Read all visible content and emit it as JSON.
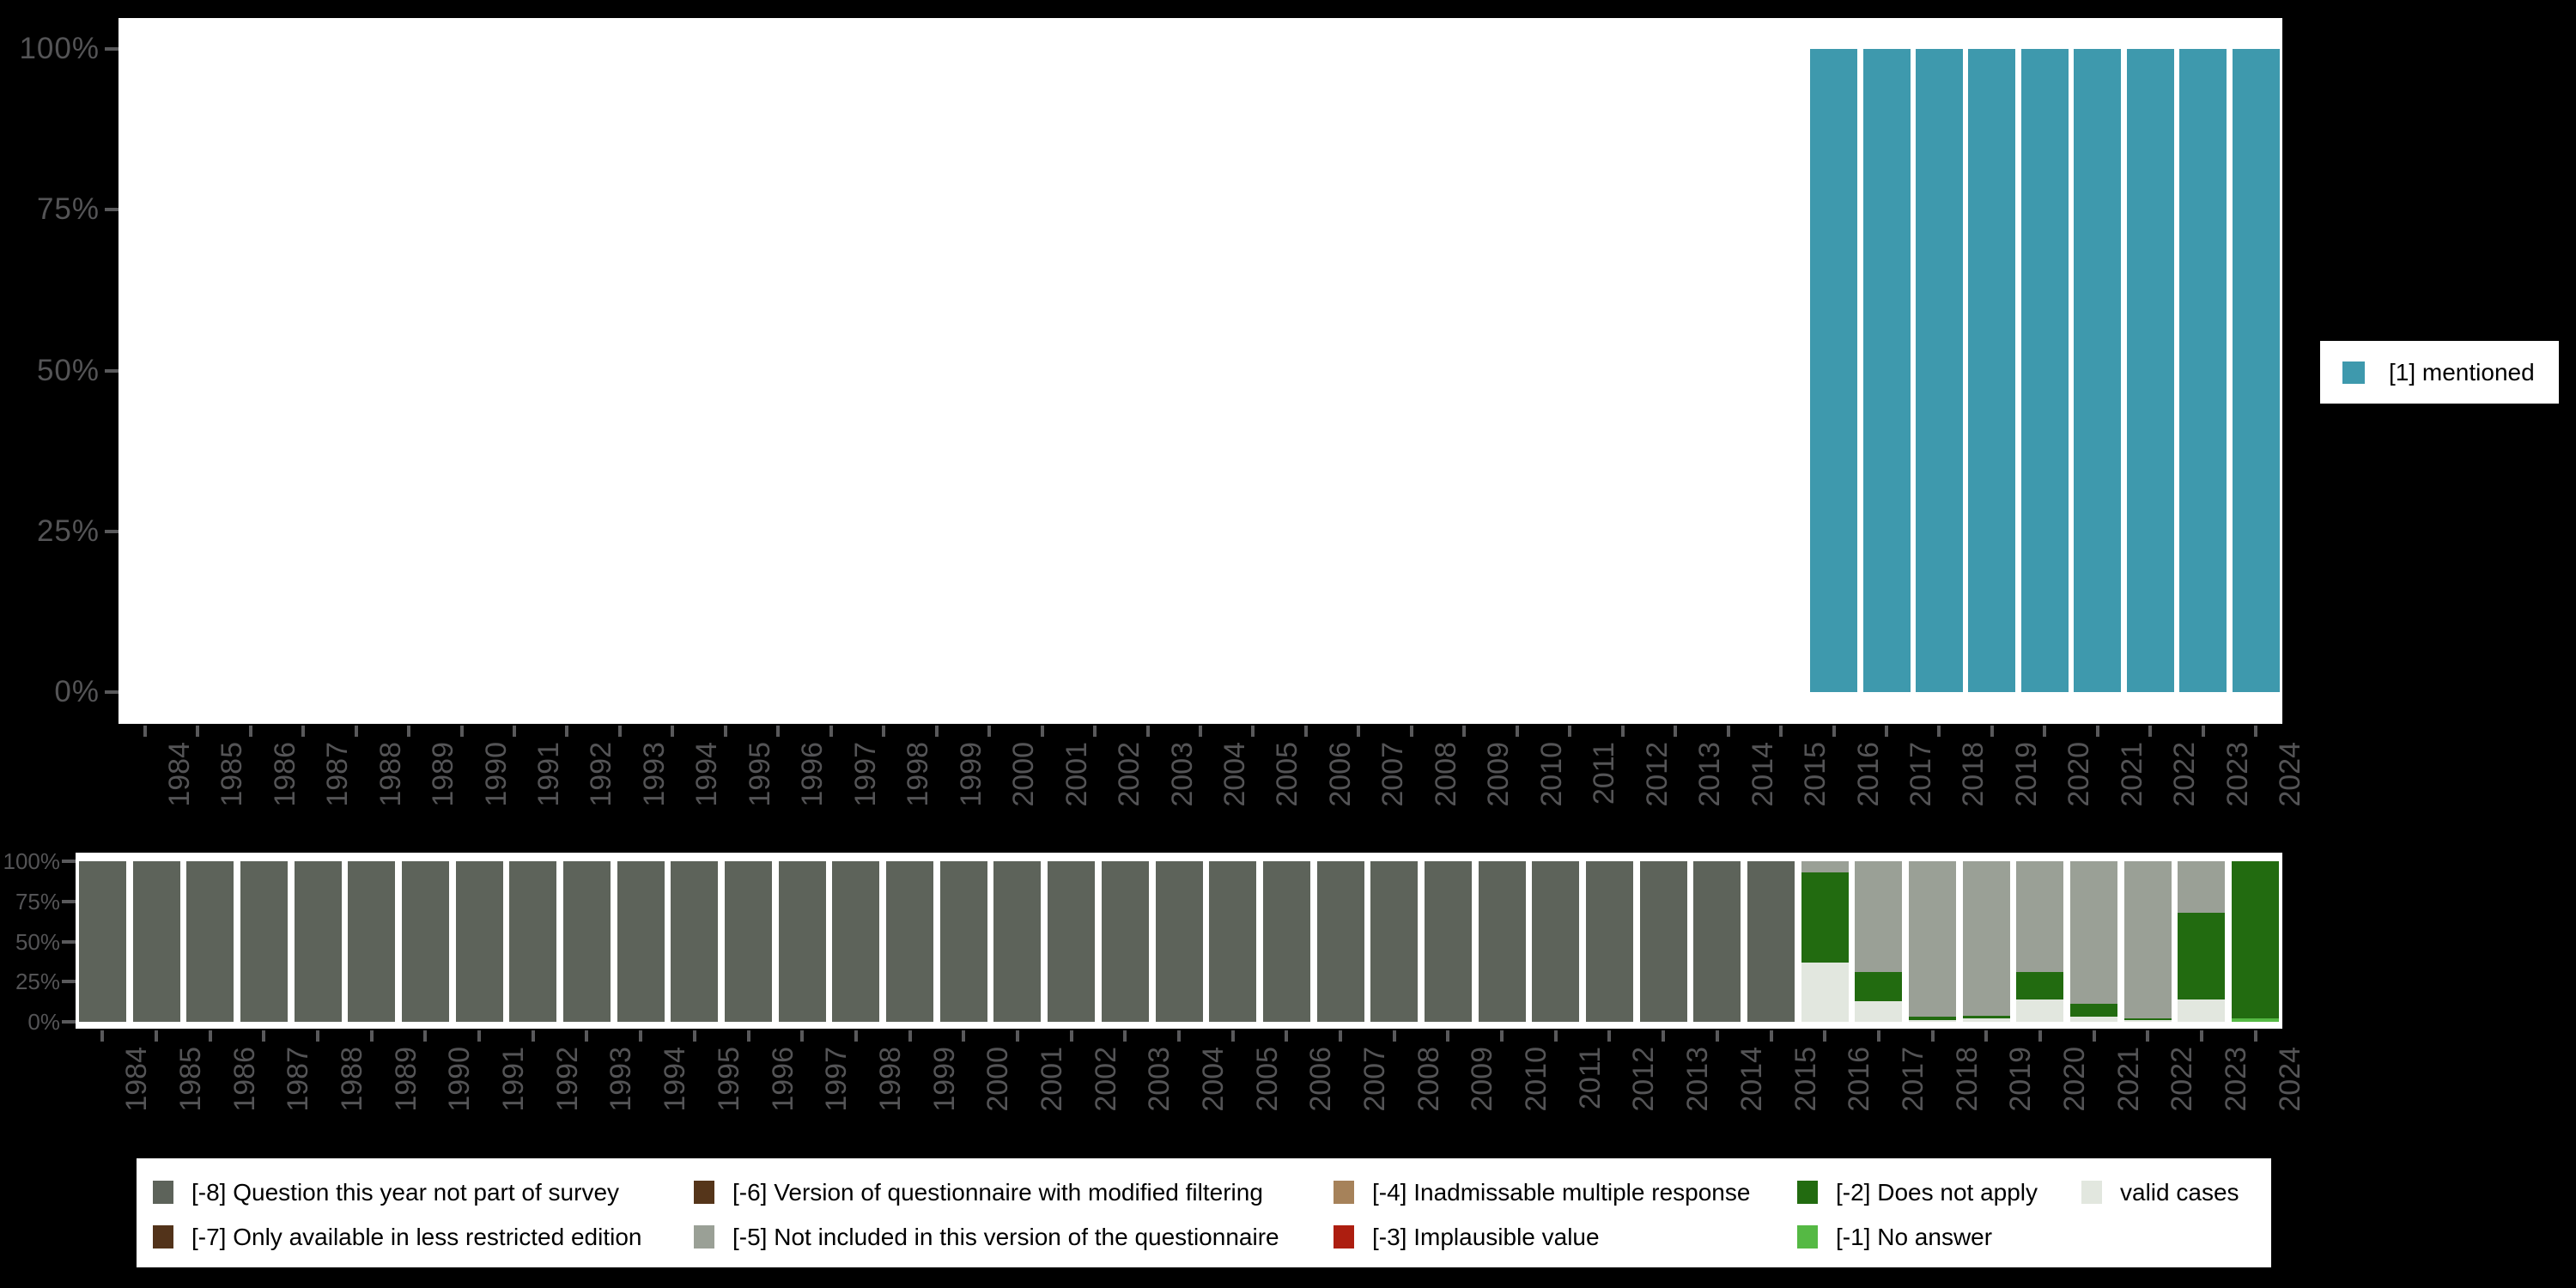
{
  "colors": {
    "background": "#000000",
    "panel": "#ffffff",
    "axis_text": "#545456",
    "tick": "#59595b",
    "legend_text": "#000000",
    "mentioned": "#3e99ad",
    "codes": {
      "minus8": "#5d635a",
      "minus7": "#52331a",
      "minus6": "#55351a",
      "minus5": "#9aa096",
      "minus4": "#a6825a",
      "minus3": "#ad1e10",
      "minus2": "#226b10",
      "minus1": "#55b944",
      "valid": "#e2e7df"
    }
  },
  "top_legend": {
    "label": "[1] mentioned",
    "color": "#3e99ad"
  },
  "chart_data": [
    {
      "type": "bar",
      "title": "",
      "xlabel": "",
      "ylabel": "",
      "ylim": [
        0,
        100
      ],
      "grid": false,
      "legend_position": "right",
      "y_tick_values": [
        100,
        75,
        50,
        25,
        0
      ],
      "y_tick_labels": [
        "100%",
        "75%",
        "50%",
        "25%",
        "0%"
      ],
      "categories": [
        "1984",
        "1985",
        "1986",
        "1987",
        "1988",
        "1989",
        "1990",
        "1991",
        "1992",
        "1993",
        "1994",
        "1995",
        "1996",
        "1997",
        "1998",
        "1999",
        "2000",
        "2001",
        "2002",
        "2003",
        "2004",
        "2005",
        "2006",
        "2007",
        "2008",
        "2009",
        "2010",
        "2011",
        "2012",
        "2013",
        "2014",
        "2015",
        "2016",
        "2017",
        "2018",
        "2019",
        "2020",
        "2021",
        "2022",
        "2023",
        "2024"
      ],
      "series": [
        {
          "name": "[1] mentioned",
          "color": "#3e99ad",
          "values": [
            0,
            0,
            0,
            0,
            0,
            0,
            0,
            0,
            0,
            0,
            0,
            0,
            0,
            0,
            0,
            0,
            0,
            0,
            0,
            0,
            0,
            0,
            0,
            0,
            0,
            0,
            0,
            0,
            0,
            0,
            0,
            0,
            100,
            100,
            100,
            100,
            100,
            100,
            100,
            100,
            100
          ]
        }
      ]
    },
    {
      "type": "bar",
      "stacked": true,
      "title": "",
      "xlabel": "",
      "ylabel": "",
      "ylim": [
        0,
        100
      ],
      "grid": false,
      "legend_position": "bottom",
      "y_tick_values": [
        100,
        75,
        50,
        25,
        0
      ],
      "y_tick_labels": [
        "100%",
        "75%",
        "50%",
        "25%",
        "0%"
      ],
      "categories": [
        "1984",
        "1985",
        "1986",
        "1987",
        "1988",
        "1989",
        "1990",
        "1991",
        "1992",
        "1993",
        "1994",
        "1995",
        "1996",
        "1997",
        "1998",
        "1999",
        "2000",
        "2001",
        "2002",
        "2003",
        "2004",
        "2005",
        "2006",
        "2007",
        "2008",
        "2009",
        "2010",
        "2011",
        "2012",
        "2013",
        "2014",
        "2015",
        "2016",
        "2017",
        "2018",
        "2019",
        "2020",
        "2021",
        "2022",
        "2023",
        "2024"
      ],
      "series": [
        {
          "name": "valid cases",
          "color": "#e2e7df",
          "values": [
            0,
            0,
            0,
            0,
            0,
            0,
            0,
            0,
            0,
            0,
            0,
            0,
            0,
            0,
            0,
            0,
            0,
            0,
            0,
            0,
            0,
            0,
            0,
            0,
            0,
            0,
            0,
            0,
            0,
            0,
            0,
            0,
            37,
            13,
            1,
            2,
            14,
            3,
            1,
            14,
            0
          ]
        },
        {
          "name": "[-1] No answer",
          "color": "#55b944",
          "values": [
            0,
            0,
            0,
            0,
            0,
            0,
            0,
            0,
            0,
            0,
            0,
            0,
            0,
            0,
            0,
            0,
            0,
            0,
            0,
            0,
            0,
            0,
            0,
            0,
            0,
            0,
            0,
            0,
            0,
            0,
            0,
            0,
            0,
            0,
            0,
            0,
            0,
            0,
            0,
            0,
            2
          ]
        },
        {
          "name": "[-2] Does not apply",
          "color": "#226b10",
          "values": [
            0,
            0,
            0,
            0,
            0,
            0,
            0,
            0,
            0,
            0,
            0,
            0,
            0,
            0,
            0,
            0,
            0,
            0,
            0,
            0,
            0,
            0,
            0,
            0,
            0,
            0,
            0,
            0,
            0,
            0,
            0,
            0,
            56,
            18,
            2,
            2,
            17,
            8,
            1,
            54,
            98
          ]
        },
        {
          "name": "[-5] Not included in this version of the questionnaire",
          "color": "#9aa096",
          "values": [
            0,
            0,
            0,
            0,
            0,
            0,
            0,
            0,
            0,
            0,
            0,
            0,
            0,
            0,
            0,
            0,
            0,
            0,
            0,
            0,
            0,
            0,
            0,
            0,
            0,
            0,
            0,
            0,
            0,
            0,
            0,
            0,
            7,
            69,
            97,
            96,
            69,
            89,
            98,
            32,
            0
          ]
        },
        {
          "name": "[-8] Question this year not part of survey",
          "color": "#5d635a",
          "values": [
            100,
            100,
            100,
            100,
            100,
            100,
            100,
            100,
            100,
            100,
            100,
            100,
            100,
            100,
            100,
            100,
            100,
            100,
            100,
            100,
            100,
            100,
            100,
            100,
            100,
            100,
            100,
            100,
            100,
            100,
            100,
            100,
            0,
            0,
            0,
            0,
            0,
            0,
            0,
            0,
            0
          ]
        }
      ]
    }
  ],
  "bottom_legend": {
    "entries": [
      {
        "row": 0,
        "col": 0,
        "color": "#5d635a",
        "label": "[-8] Question this year not part of survey"
      },
      {
        "row": 1,
        "col": 0,
        "color": "#52331a",
        "label": "[-7] Only available in less restricted edition"
      },
      {
        "row": 0,
        "col": 1,
        "color": "#55351a",
        "label": "[-6] Version of questionnaire with modified filtering"
      },
      {
        "row": 1,
        "col": 1,
        "color": "#9aa096",
        "label": "[-5] Not included in this version of the questionnaire"
      },
      {
        "row": 0,
        "col": 2,
        "color": "#a6825a",
        "label": "[-4] Inadmissable multiple response"
      },
      {
        "row": 1,
        "col": 2,
        "color": "#ad1e10",
        "label": "[-3] Implausible value"
      },
      {
        "row": 0,
        "col": 3,
        "color": "#226b10",
        "label": "[-2] Does not apply"
      },
      {
        "row": 1,
        "col": 3,
        "color": "#55b944",
        "label": "[-1] No answer"
      },
      {
        "row": 0,
        "col": 4,
        "color": "#e2e7df",
        "label": "valid cases"
      }
    ]
  }
}
